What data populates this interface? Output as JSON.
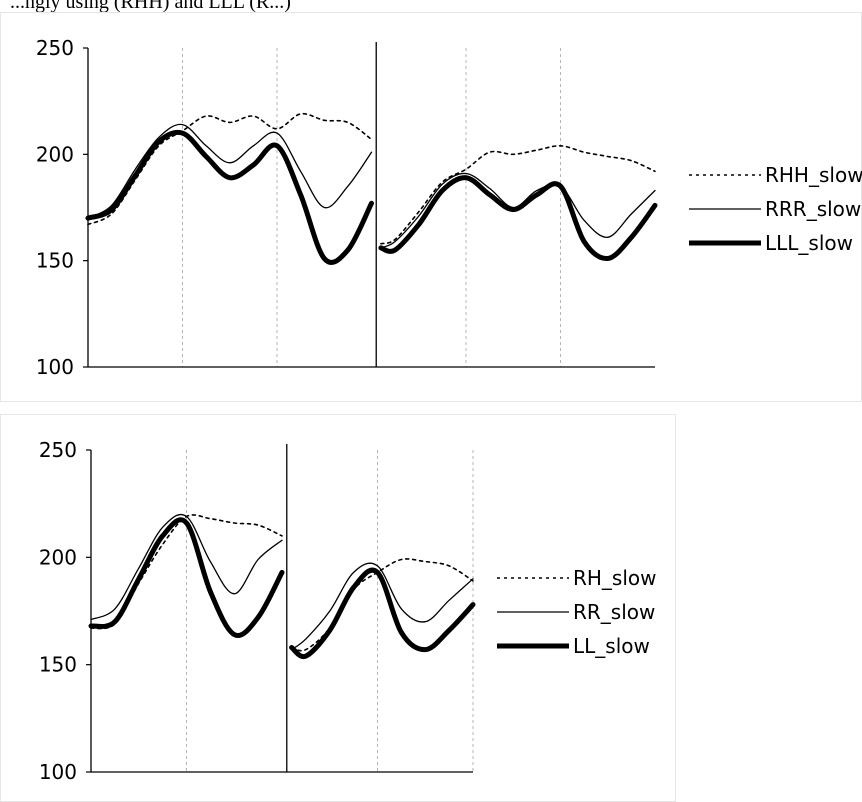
{
  "caption": "...ngly using (RHH) and LLL (R...)",
  "chart_data": [
    {
      "type": "line",
      "yticks": [
        "250",
        "200",
        "150",
        "100"
      ],
      "ylim": [
        100,
        250
      ],
      "x": [
        0,
        0.25,
        0.5,
        0.75,
        1.0,
        1.25,
        1.5,
        1.75,
        2.0,
        2.25,
        2.5,
        2.75,
        3.0,
        3.1,
        3.25,
        3.5,
        3.75,
        4.0,
        4.25,
        4.5,
        4.75,
        5.0,
        5.25,
        5.5,
        5.75,
        6.0
      ],
      "segments": [
        [
          0,
          12
        ],
        [
          13,
          25
        ]
      ],
      "series": [
        {
          "name": "RHH_slow",
          "style": "dotted",
          "values": [
            167,
            172,
            188,
            204,
            211,
            218,
            215,
            218,
            212,
            219,
            216,
            215,
            207,
            158,
            160,
            173,
            187,
            193,
            201,
            200,
            202,
            204,
            201,
            199,
            197,
            192
          ]
        },
        {
          "name": "RRR_slow",
          "style": "thin",
          "values": [
            170,
            176,
            193,
            208,
            214,
            204,
            196,
            204,
            210,
            192,
            175,
            185,
            201,
            156,
            159,
            171,
            186,
            191,
            184,
            175,
            183,
            185,
            169,
            161,
            172,
            183
          ]
        },
        {
          "name": "LLL_slow",
          "style": "thick",
          "values": [
            170,
            174,
            190,
            206,
            210,
            199,
            189,
            195,
            204,
            181,
            151,
            155,
            177,
            156,
            155,
            167,
            183,
            189,
            181,
            174,
            181,
            185,
            159,
            151,
            161,
            176
          ]
        }
      ]
    },
    {
      "type": "line",
      "yticks": [
        "250",
        "200",
        "150",
        "100"
      ],
      "ylim": [
        100,
        250
      ],
      "x": [
        0,
        0.25,
        0.5,
        0.75,
        1.0,
        1.25,
        1.5,
        1.75,
        2.0,
        2.1,
        2.25,
        2.5,
        2.75,
        3.0,
        3.25,
        3.5,
        3.75,
        4.0
      ],
      "segments": [
        [
          0,
          8
        ],
        [
          9,
          17
        ]
      ],
      "series": [
        {
          "name": "RH_slow",
          "style": "dotted",
          "values": [
            167,
            169,
            188,
            206,
            219,
            218,
            216,
            215,
            210,
            158,
            157,
            167,
            185,
            193,
            199,
            198,
            196,
            189
          ]
        },
        {
          "name": "RR_slow",
          "style": "thin",
          "values": [
            171,
            176,
            195,
            214,
            219,
            198,
            183,
            199,
            208,
            157,
            162,
            175,
            193,
            196,
            176,
            170,
            180,
            190
          ]
        },
        {
          "name": "LL_slow",
          "style": "thick",
          "values": [
            168,
            170,
            190,
            210,
            216,
            184,
            164,
            172,
            193,
            158,
            154,
            166,
            186,
            193,
            165,
            157,
            166,
            178
          ]
        }
      ]
    }
  ]
}
